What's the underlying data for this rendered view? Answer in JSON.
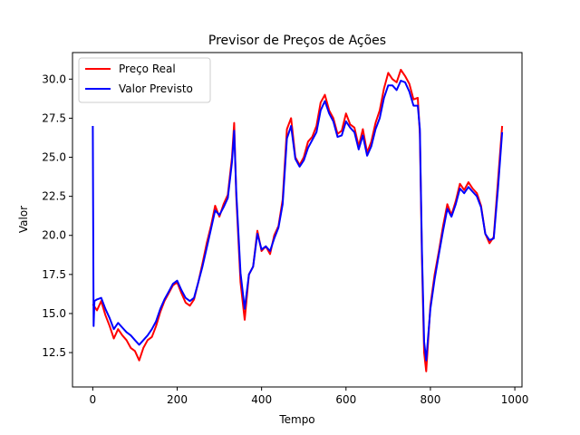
{
  "chart_data": {
    "type": "line",
    "title": "Previsor de Preços de Ações",
    "xlabel": "Tempo",
    "ylabel": "Valor",
    "xlim": [
      -48,
      1017
    ],
    "ylim": [
      10.3,
      31.7
    ],
    "xticks": [
      0,
      200,
      400,
      600,
      800,
      1000
    ],
    "yticks": [
      12.5,
      15.0,
      17.5,
      20.0,
      22.5,
      25.0,
      27.5,
      30.0
    ],
    "ytick_labels": [
      "12.5",
      "15.0",
      "17.5",
      "20.0",
      "22.5",
      "25.0",
      "27.5",
      "30.0"
    ],
    "grid": false,
    "legend": "top-left",
    "series": [
      {
        "name": "Preço Real",
        "color": "#ff0000",
        "x": [
          0,
          10,
          20,
          30,
          40,
          50,
          60,
          70,
          80,
          90,
          100,
          110,
          120,
          130,
          140,
          150,
          160,
          170,
          180,
          190,
          200,
          210,
          220,
          230,
          240,
          250,
          260,
          270,
          280,
          290,
          300,
          310,
          320,
          330,
          335,
          340,
          350,
          360,
          370,
          380,
          390,
          400,
          410,
          420,
          430,
          440,
          450,
          460,
          470,
          480,
          490,
          500,
          510,
          520,
          530,
          540,
          550,
          560,
          570,
          580,
          590,
          600,
          610,
          620,
          630,
          640,
          650,
          660,
          670,
          680,
          690,
          700,
          710,
          720,
          730,
          740,
          750,
          760,
          770,
          775,
          780,
          785,
          790,
          800,
          810,
          820,
          830,
          840,
          850,
          860,
          870,
          880,
          890,
          900,
          910,
          920,
          930,
          940,
          950,
          960,
          970
        ],
        "y": [
          15.6,
          15.2,
          15.8,
          14.9,
          14.2,
          13.4,
          14.0,
          13.6,
          13.3,
          12.8,
          12.6,
          12.0,
          12.8,
          13.3,
          13.5,
          14.2,
          15.1,
          15.8,
          16.3,
          16.8,
          17.0,
          16.3,
          15.7,
          15.5,
          15.9,
          17.0,
          18.2,
          19.5,
          20.6,
          21.9,
          21.2,
          22.0,
          22.6,
          25.0,
          27.2,
          22.5,
          17.0,
          14.6,
          17.5,
          18.0,
          20.3,
          19.0,
          19.3,
          18.8,
          20.0,
          20.6,
          22.3,
          26.8,
          27.5,
          25.0,
          24.5,
          25.0,
          26.0,
          26.3,
          27.0,
          28.5,
          29.0,
          28.0,
          27.5,
          26.5,
          26.7,
          27.8,
          27.1,
          26.9,
          25.7,
          26.8,
          25.3,
          26.0,
          27.2,
          28.0,
          29.4,
          30.4,
          30.0,
          29.8,
          30.6,
          30.2,
          29.7,
          28.7,
          28.8,
          26.5,
          18.5,
          12.5,
          11.3,
          15.5,
          17.5,
          19.0,
          20.6,
          22.0,
          21.3,
          22.2,
          23.3,
          22.9,
          23.4,
          23.0,
          22.7,
          21.9,
          20.1,
          19.5,
          19.9,
          23.5,
          27.0
        ],
        "y_note": ""
      },
      {
        "name": "Valor Previsto",
        "color": "#0000ff",
        "x": [
          0,
          2,
          4,
          10,
          20,
          30,
          40,
          50,
          60,
          70,
          80,
          90,
          100,
          110,
          120,
          130,
          140,
          150,
          160,
          170,
          180,
          190,
          200,
          210,
          220,
          230,
          240,
          250,
          260,
          270,
          280,
          290,
          300,
          310,
          320,
          330,
          335,
          340,
          350,
          360,
          370,
          380,
          390,
          400,
          410,
          420,
          430,
          440,
          450,
          460,
          470,
          480,
          490,
          500,
          510,
          520,
          530,
          540,
          550,
          560,
          570,
          580,
          590,
          600,
          610,
          620,
          630,
          640,
          650,
          660,
          670,
          680,
          690,
          700,
          710,
          720,
          730,
          740,
          750,
          760,
          770,
          775,
          780,
          785,
          790,
          800,
          810,
          820,
          830,
          840,
          850,
          860,
          870,
          880,
          890,
          900,
          910,
          920,
          930,
          940,
          950,
          960,
          970
        ],
        "y": [
          27.0,
          14.2,
          15.8,
          15.9,
          16.0,
          15.3,
          14.7,
          14.0,
          14.4,
          14.1,
          13.8,
          13.6,
          13.3,
          13.0,
          13.3,
          13.6,
          14.0,
          14.5,
          15.3,
          15.9,
          16.4,
          16.9,
          17.1,
          16.5,
          16.0,
          15.8,
          16.0,
          17.0,
          18.0,
          19.2,
          20.4,
          21.6,
          21.3,
          21.8,
          22.4,
          24.7,
          26.7,
          22.8,
          17.6,
          15.3,
          17.5,
          18.0,
          20.1,
          19.1,
          19.3,
          19.0,
          19.8,
          20.5,
          22.0,
          26.2,
          27.0,
          24.9,
          24.4,
          24.8,
          25.6,
          26.1,
          26.6,
          28.0,
          28.6,
          27.8,
          27.3,
          26.3,
          26.4,
          27.3,
          26.9,
          26.6,
          25.5,
          26.4,
          25.1,
          25.7,
          26.8,
          27.5,
          28.8,
          29.6,
          29.6,
          29.3,
          29.9,
          29.8,
          29.2,
          28.3,
          28.3,
          26.8,
          19.0,
          13.2,
          12.0,
          15.3,
          17.2,
          18.8,
          20.3,
          21.7,
          21.2,
          22.0,
          23.0,
          22.7,
          23.1,
          22.8,
          22.5,
          21.8,
          20.1,
          19.7,
          19.8,
          23.0,
          26.6
        ]
      }
    ]
  }
}
